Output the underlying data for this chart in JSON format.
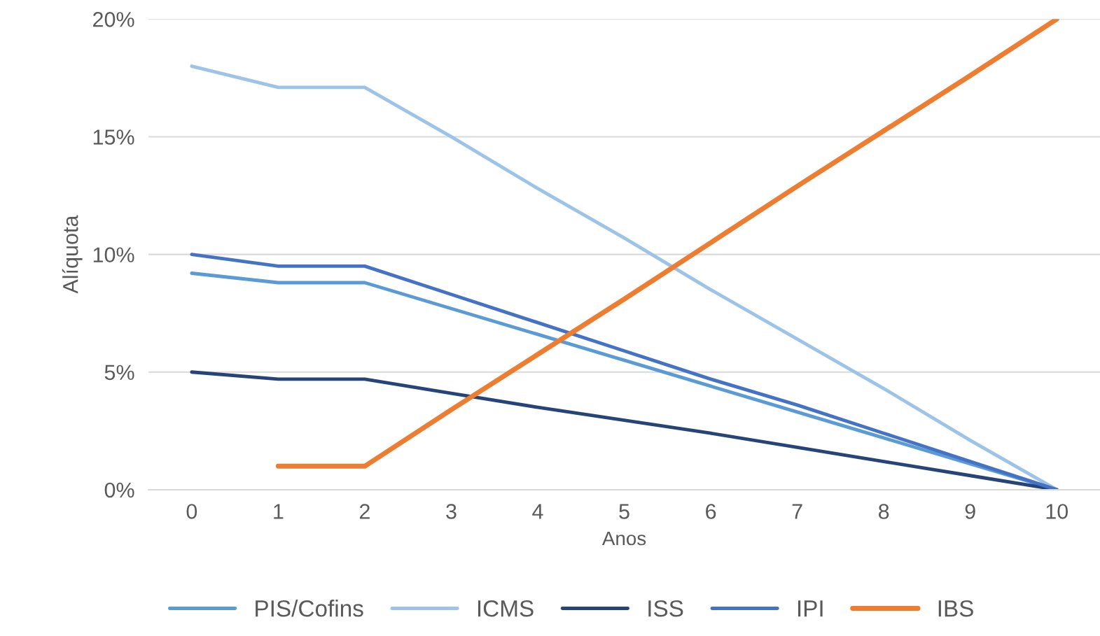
{
  "chart_data": {
    "type": "line",
    "xlabel": "Anos",
    "ylabel": "Alíquota",
    "categories": [
      "0",
      "1",
      "2",
      "3",
      "4",
      "5",
      "6",
      "7",
      "8",
      "9",
      "10"
    ],
    "series": [
      {
        "name": "PIS/Cofins",
        "color": "#5b9bd5",
        "values": [
          9.2,
          8.8,
          8.8,
          7.7,
          6.6,
          5.5,
          4.4,
          3.3,
          2.2,
          1.1,
          0
        ]
      },
      {
        "name": "ICMS",
        "color": "#9dc3e6",
        "values": [
          18,
          17.1,
          17.1,
          15.0,
          12.8,
          10.7,
          8.5,
          6.4,
          4.3,
          2.1,
          0
        ]
      },
      {
        "name": "ISS",
        "color": "#264478",
        "values": [
          5,
          4.7,
          4.7,
          4.1,
          3.5,
          2.95,
          2.4,
          1.8,
          1.2,
          0.6,
          0
        ]
      },
      {
        "name": "IPI",
        "color": "#4472c4",
        "values": [
          10,
          9.5,
          9.5,
          8.3,
          7.1,
          5.9,
          4.7,
          3.6,
          2.4,
          1.2,
          0
        ]
      },
      {
        "name": "IBS",
        "color": "#ed7d31",
        "values": [
          null,
          1,
          1,
          3.4,
          5.75,
          8.1,
          10.5,
          12.9,
          15.25,
          17.6,
          20
        ]
      }
    ],
    "ylim": [
      0,
      20
    ],
    "yticks": [
      {
        "value": 0,
        "label": "0%"
      },
      {
        "value": 5,
        "label": "5%"
      },
      {
        "value": 10,
        "label": "10%"
      },
      {
        "value": 15,
        "label": "15%"
      },
      {
        "value": 20,
        "label": "20%"
      }
    ],
    "grid": "y",
    "legend": "bottom",
    "marker": "none",
    "line_style": "solid"
  }
}
